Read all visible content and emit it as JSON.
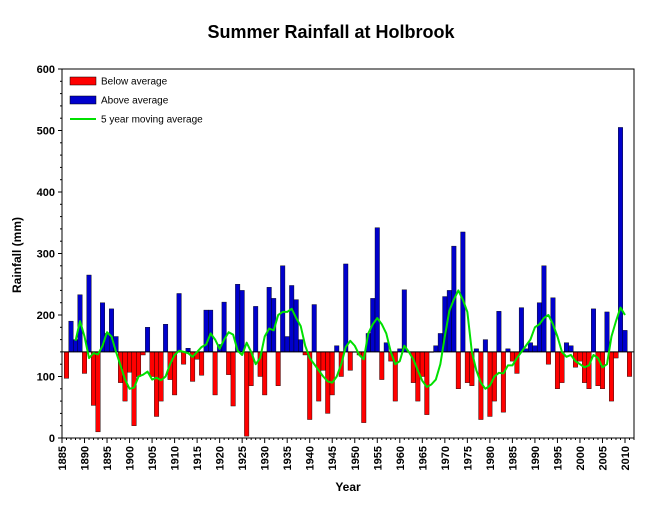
{
  "chart_data": {
    "type": "bar",
    "title": "Summer Rainfall at Holbrook",
    "xlabel": "Year",
    "ylabel": "Rainfall (mm)",
    "ylim": [
      0,
      600
    ],
    "xlim": [
      1885,
      2012
    ],
    "baseline": 140,
    "yticks": [
      0,
      100,
      200,
      300,
      400,
      500,
      600
    ],
    "xticks": [
      1885,
      1890,
      1895,
      1900,
      1905,
      1910,
      1915,
      1920,
      1925,
      1930,
      1935,
      1940,
      1945,
      1950,
      1955,
      1960,
      1965,
      1970,
      1975,
      1980,
      1985,
      1990,
      1995,
      2000,
      2005,
      2010
    ],
    "legend_position": "top-left",
    "grid": false,
    "colors": {
      "below": "#ff0000",
      "above": "#0000cc",
      "moving_average": "#00e000"
    },
    "legend": [
      {
        "label": "Below average",
        "kind": "below"
      },
      {
        "label": "Above average",
        "kind": "above"
      },
      {
        "label": "5 year moving average",
        "kind": "moving_average"
      }
    ],
    "years": [
      1886,
      1887,
      1888,
      1889,
      1890,
      1891,
      1892,
      1893,
      1894,
      1895,
      1896,
      1897,
      1898,
      1899,
      1900,
      1901,
      1902,
      1903,
      1904,
      1905,
      1906,
      1907,
      1908,
      1909,
      1910,
      1911,
      1912,
      1913,
      1914,
      1915,
      1916,
      1917,
      1918,
      1919,
      1920,
      1921,
      1922,
      1923,
      1924,
      1925,
      1926,
      1927,
      1928,
      1929,
      1930,
      1931,
      1932,
      1933,
      1934,
      1935,
      1936,
      1937,
      1938,
      1939,
      1940,
      1941,
      1942,
      1943,
      1944,
      1945,
      1946,
      1947,
      1948,
      1949,
      1950,
      1951,
      1952,
      1953,
      1954,
      1955,
      1956,
      1957,
      1958,
      1959,
      1960,
      1961,
      1962,
      1963,
      1964,
      1965,
      1966,
      1967,
      1968,
      1969,
      1970,
      1971,
      1972,
      1973,
      1974,
      1975,
      1976,
      1977,
      1978,
      1979,
      1980,
      1981,
      1982,
      1983,
      1984,
      1985,
      1986,
      1987,
      1988,
      1989,
      1990,
      1991,
      1992,
      1993,
      1994,
      1995,
      1996,
      1997,
      1998,
      1999,
      2000,
      2001,
      2002,
      2003,
      2004,
      2005,
      2006,
      2007,
      2008,
      2009,
      2010,
      2011
    ],
    "rainfall": [
      97,
      190,
      160,
      233,
      105,
      265,
      53,
      10,
      220,
      170,
      210,
      165,
      90,
      60,
      107,
      20,
      100,
      135,
      180,
      100,
      35,
      60,
      185,
      95,
      70,
      235,
      120,
      146,
      92,
      128,
      102,
      208,
      208,
      70,
      152,
      221,
      103,
      52,
      250,
      240,
      3,
      85,
      214,
      100,
      70,
      245,
      227,
      85,
      280,
      165,
      248,
      225,
      160,
      135,
      30,
      217,
      60,
      110,
      40,
      70,
      150,
      100,
      283,
      110,
      140,
      135,
      25,
      170,
      227,
      342,
      95,
      155,
      125,
      60,
      145,
      241,
      140,
      90,
      60,
      100,
      38,
      140,
      150,
      170,
      230,
      240,
      312,
      80,
      335,
      90,
      85,
      145,
      30,
      160,
      35,
      60,
      206,
      42,
      145,
      125,
      105,
      212,
      145,
      155,
      150,
      220,
      280,
      120,
      228,
      80,
      90,
      155,
      150,
      115,
      125,
      90,
      80,
      210,
      85,
      80,
      205,
      60,
      130,
      505,
      175,
      100
    ],
    "moving_average": [
      null,
      null,
      158,
      190,
      165,
      130,
      138,
      136,
      150,
      172,
      165,
      140,
      118,
      95,
      80,
      82,
      100,
      103,
      108,
      95,
      98,
      94,
      100,
      120,
      135,
      142,
      140,
      138,
      132,
      140,
      148,
      152,
      170,
      160,
      145,
      160,
      172,
      168,
      142,
      135,
      155,
      140,
      120,
      130,
      165,
      178,
      175,
      200,
      205,
      205,
      210,
      195,
      182,
      150,
      130,
      120,
      110,
      100,
      92,
      90,
      100,
      120,
      148,
      158,
      150,
      135,
      128,
      170,
      185,
      195,
      185,
      170,
      140,
      120,
      125,
      150,
      140,
      128,
      110,
      93,
      83,
      87,
      95,
      120,
      165,
      207,
      225,
      240,
      225,
      205,
      140,
      110,
      90,
      80,
      85,
      100,
      106,
      105,
      118,
      118,
      130,
      140,
      150,
      160,
      180,
      185,
      195,
      200,
      185,
      165,
      140,
      132,
      135,
      125,
      120,
      115,
      118,
      135,
      130,
      115,
      120,
      165,
      190,
      212,
      200,
      null
    ]
  }
}
